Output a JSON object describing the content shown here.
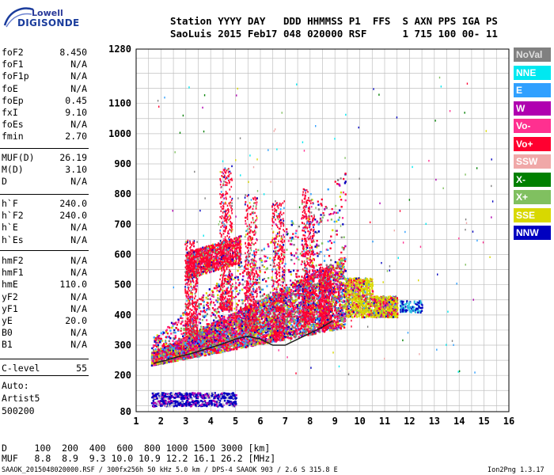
{
  "logo": {
    "line1": "Lowell",
    "line2": "DIGISONDE"
  },
  "header": {
    "line1": "Station YYYY DAY   DDD HHMMSS P1  FFS  S AXN PPS IGA PS",
    "line2": "SaoLuis 2015 Feb17 048 020000 RSF      1 715 100 00- 11"
  },
  "params_group1": [
    {
      "k": "foF2",
      "v": "8.450"
    },
    {
      "k": "foF1",
      "v": "N/A"
    },
    {
      "k": "foF1p",
      "v": "N/A"
    },
    {
      "k": "foE",
      "v": "N/A"
    },
    {
      "k": "foEp",
      "v": "0.45"
    },
    {
      "k": "fxI",
      "v": "9.10"
    },
    {
      "k": "foEs",
      "v": "N/A"
    },
    {
      "k": "fmin",
      "v": "2.70"
    }
  ],
  "params_group2": [
    {
      "k": "MUF(D)",
      "v": "26.19"
    },
    {
      "k": "M(D)",
      "v": "3.10"
    },
    {
      "k": "D",
      "v": "N/A"
    }
  ],
  "params_group3": [
    {
      "k": "h`F",
      "v": "240.0"
    },
    {
      "k": "h`F2",
      "v": "240.0"
    },
    {
      "k": "h`E",
      "v": "N/A"
    },
    {
      "k": "h`Es",
      "v": "N/A"
    }
  ],
  "params_group4": [
    {
      "k": "hmF2",
      "v": "N/A"
    },
    {
      "k": "hmF1",
      "v": "N/A"
    },
    {
      "k": "hmE",
      "v": "110.0"
    },
    {
      "k": "yF2",
      "v": "N/A"
    },
    {
      "k": "yF1",
      "v": "N/A"
    },
    {
      "k": "yE",
      "v": "20.0"
    },
    {
      "k": "B0",
      "v": "N/A"
    },
    {
      "k": "B1",
      "v": "N/A"
    }
  ],
  "params_group5": [
    {
      "k": "C-level",
      "v": "55"
    }
  ],
  "auto": [
    "Auto:",
    "Artist5",
    "500200"
  ],
  "legend": [
    {
      "label": "NoVal",
      "bg": "#808080",
      "fg": "#e0e0e0"
    },
    {
      "label": "NNE",
      "bg": "#00e8f0",
      "fg": "#ffffff"
    },
    {
      "label": "E",
      "bg": "#30a0ff",
      "fg": "#ffffff"
    },
    {
      "label": "W",
      "bg": "#b000b0",
      "fg": "#ffffff"
    },
    {
      "label": "Vo-",
      "bg": "#ff3090",
      "fg": "#ffffff"
    },
    {
      "label": "Vo+",
      "bg": "#ff0030",
      "fg": "#ffffff"
    },
    {
      "label": "SSW",
      "bg": "#f0a8a8",
      "fg": "#ffffff"
    },
    {
      "label": "X-",
      "bg": "#008000",
      "fg": "#ffffff"
    },
    {
      "label": "X+",
      "bg": "#80c060",
      "fg": "#ffffff"
    },
    {
      "label": "SSE",
      "bg": "#d8d800",
      "fg": "#ffffff"
    },
    {
      "label": "NNW",
      "bg": "#0000c0",
      "fg": "#ffffff"
    }
  ],
  "bottom": {
    "line1": "D     100  200  400  600  800 1000 1500 3000 [km]",
    "line2": "MUF   8.8  8.9  9.3 10.0 10.9 12.2 16.1 26.2 [MHz]"
  },
  "footer": {
    "left": "SAAOK_2015048020000.RSF / 300fx256h 50 kHz 5.0 km / DPS-4 SAAOK 903 / 2.6 S 315.8 E",
    "right": "Ion2Png 1.3.17"
  },
  "chart_data": {
    "type": "scatter",
    "xlim": [
      1,
      16
    ],
    "ylim": [
      80,
      1280
    ],
    "xticks": [
      "1",
      "2",
      "3",
      "4",
      "5",
      "6",
      "7",
      "8",
      "9",
      "10",
      "11",
      "12",
      "13",
      "14",
      "15",
      "16"
    ],
    "yticks": [
      "80",
      "200",
      "300",
      "400",
      "500",
      "600",
      "700",
      "800",
      "900",
      "1000",
      "1100",
      "1280"
    ],
    "trace": {
      "x": [
        1.7,
        2.2,
        2.7,
        3.2,
        3.6,
        4.0,
        4.5,
        5.0,
        5.5,
        6.0,
        6.5,
        7.0,
        7.5,
        8.0,
        8.5,
        8.9
      ],
      "y": [
        240,
        250,
        262,
        272,
        282,
        292,
        305,
        320,
        330,
        320,
        300,
        300,
        320,
        340,
        360,
        380
      ]
    }
  }
}
